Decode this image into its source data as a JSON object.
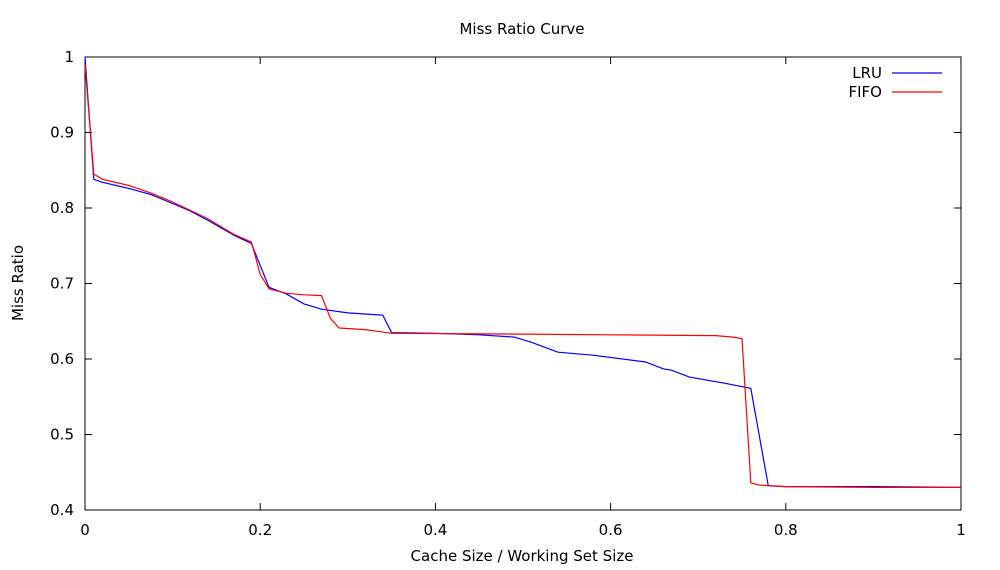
{
  "chart_data": {
    "type": "line",
    "title": "Miss Ratio Curve",
    "xlabel": "Cache Size / Working Set Size",
    "ylabel": "Miss Ratio",
    "xlim": [
      0,
      1
    ],
    "ylim": [
      0.4,
      1
    ],
    "x_ticks": [
      0,
      0.2,
      0.4,
      0.6,
      0.8,
      1
    ],
    "x_tick_labels": [
      "0",
      "0.2",
      "0.4",
      "0.6",
      "0.8",
      "1"
    ],
    "y_ticks": [
      0.4,
      0.5,
      0.6,
      0.7,
      0.8,
      0.9,
      1
    ],
    "y_tick_labels": [
      "0.4",
      "0.5",
      "0.6",
      "0.7",
      "0.8",
      "0.9",
      "1"
    ],
    "grid": false,
    "legend_position": "top-right",
    "series": [
      {
        "name": "LRU",
        "color": "#0000ff",
        "points": [
          [
            0,
            1.0
          ],
          [
            0.01,
            0.838
          ],
          [
            0.02,
            0.834
          ],
          [
            0.05,
            0.826
          ],
          [
            0.075,
            0.818
          ],
          [
            0.1,
            0.806
          ],
          [
            0.12,
            0.796
          ],
          [
            0.14,
            0.784
          ],
          [
            0.17,
            0.764
          ],
          [
            0.19,
            0.753
          ],
          [
            0.21,
            0.695
          ],
          [
            0.23,
            0.686
          ],
          [
            0.25,
            0.673
          ],
          [
            0.27,
            0.666
          ],
          [
            0.3,
            0.661
          ],
          [
            0.34,
            0.658
          ],
          [
            0.35,
            0.635
          ],
          [
            0.4,
            0.634
          ],
          [
            0.45,
            0.632
          ],
          [
            0.49,
            0.629
          ],
          [
            0.51,
            0.622
          ],
          [
            0.54,
            0.609
          ],
          [
            0.58,
            0.605
          ],
          [
            0.64,
            0.596
          ],
          [
            0.66,
            0.587
          ],
          [
            0.67,
            0.585
          ],
          [
            0.69,
            0.576
          ],
          [
            0.73,
            0.568
          ],
          [
            0.76,
            0.561
          ],
          [
            0.78,
            0.432
          ],
          [
            0.8,
            0.431
          ],
          [
            0.9,
            0.431
          ],
          [
            1.0,
            0.43
          ]
        ]
      },
      {
        "name": "FIFO",
        "color": "#ff0000",
        "points": [
          [
            0,
            0.99
          ],
          [
            0.01,
            0.845
          ],
          [
            0.02,
            0.838
          ],
          [
            0.05,
            0.83
          ],
          [
            0.075,
            0.82
          ],
          [
            0.1,
            0.808
          ],
          [
            0.14,
            0.786
          ],
          [
            0.17,
            0.765
          ],
          [
            0.19,
            0.755
          ],
          [
            0.2,
            0.712
          ],
          [
            0.21,
            0.693
          ],
          [
            0.23,
            0.687
          ],
          [
            0.25,
            0.685
          ],
          [
            0.27,
            0.684
          ],
          [
            0.28,
            0.654
          ],
          [
            0.29,
            0.641
          ],
          [
            0.32,
            0.639
          ],
          [
            0.35,
            0.634
          ],
          [
            0.5,
            0.633
          ],
          [
            0.6,
            0.632
          ],
          [
            0.72,
            0.631
          ],
          [
            0.74,
            0.629
          ],
          [
            0.75,
            0.627
          ],
          [
            0.76,
            0.436
          ],
          [
            0.77,
            0.433
          ],
          [
            0.8,
            0.431
          ],
          [
            0.9,
            0.43
          ],
          [
            1.0,
            0.43
          ]
        ]
      }
    ]
  }
}
